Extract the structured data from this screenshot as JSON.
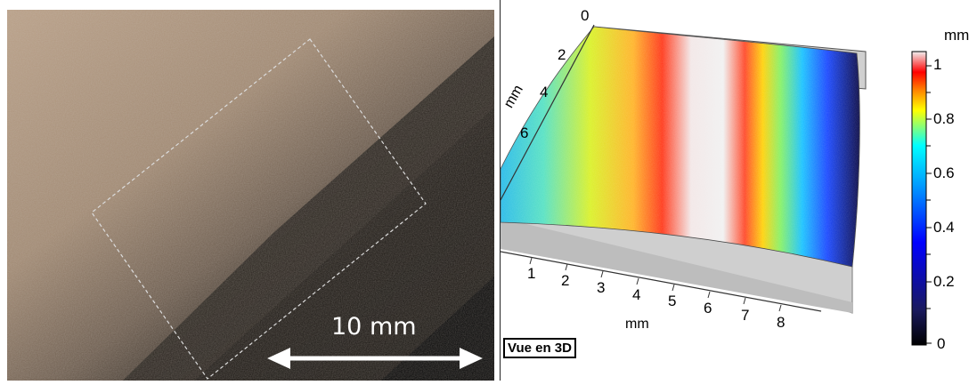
{
  "photo": {
    "scale_bar_label": "10 mm"
  },
  "view3d": {
    "view_label": "Vue en 3D",
    "axis_unit_y": "mm",
    "axis_unit_x": "mm",
    "x_ticks": [
      "1",
      "2",
      "3",
      "4",
      "5",
      "6",
      "7",
      "8"
    ],
    "y_ticks": [
      "0",
      "2",
      "4",
      "6"
    ]
  },
  "colorbar": {
    "unit": "mm",
    "ticks": [
      "1",
      "0.8",
      "0.6",
      "0.4",
      "0.2",
      "0"
    ],
    "colors": [
      "#000000",
      "#1a1a5e",
      "#0000ff",
      "#00a0ff",
      "#00ffff",
      "#ffff00",
      "#ff8000",
      "#ff0000",
      "#f0f0f0"
    ]
  }
}
